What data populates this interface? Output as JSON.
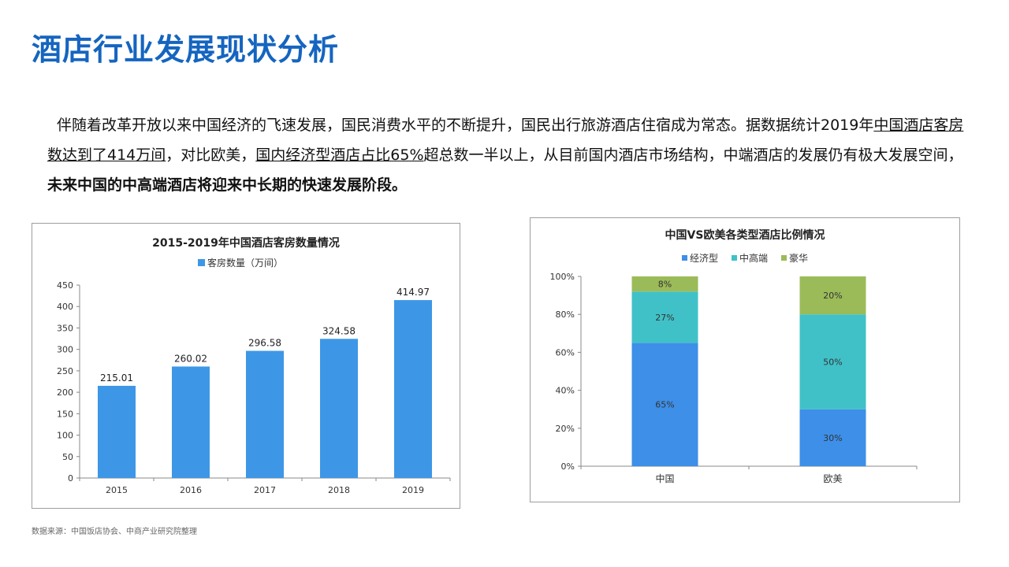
{
  "page": {
    "title": "酒店行业发展现状分析",
    "paragraph": {
      "part1": "伴随着改革开放以来中国经济的飞速发展，国民消费水平的不断提升，国民出行旅游酒店住宿成为常态。据数据统计2019年",
      "part2_underlined": "中国酒店客房数达到了414万间",
      "part3": "，对比欧美，",
      "part4_underlined": "国内经济型酒店占比65%",
      "part5": "超总数一半以上，从目前国内酒店市场结构，中端酒店的发展仍有极大发展空间，",
      "part6_bold": "未来中国的中高端酒店将迎来中长期的快速发展阶段。"
    },
    "source": "数据来源：中国饭店协会、中商产业研究院整理"
  },
  "chart_data": [
    {
      "type": "bar",
      "title": "2015-2019年中国酒店客房数量情况",
      "legend": [
        "客房数量（万间）"
      ],
      "legend_position": "top",
      "categories": [
        "2015",
        "2016",
        "2017",
        "2018",
        "2019"
      ],
      "values": [
        215.01,
        260.02,
        296.58,
        324.58,
        414.97
      ],
      "value_labels": [
        "215.01",
        "260.02",
        "296.58",
        "324.58",
        "414.97"
      ],
      "ylim": [
        0,
        450
      ],
      "yticks": [
        0,
        50,
        100,
        150,
        200,
        250,
        300,
        350,
        400,
        450
      ],
      "grid": false,
      "color": "#3d97e6"
    },
    {
      "type": "bar",
      "stacked": true,
      "title": "中国VS欧美各类型酒店比例情况",
      "legend_position": "top",
      "categories": [
        "中国",
        "欧美"
      ],
      "series": [
        {
          "name": "经济型",
          "values": [
            65,
            30
          ],
          "labels": [
            "65%",
            "30%"
          ],
          "color": "#3d8fe8"
        },
        {
          "name": "中高端",
          "values": [
            27,
            50
          ],
          "labels": [
            "27%",
            "50%"
          ],
          "color": "#40c1c7"
        },
        {
          "name": "豪华",
          "values": [
            8,
            20
          ],
          "labels": [
            "8%",
            "20%"
          ],
          "color": "#9bbb59"
        }
      ],
      "ylim": [
        0,
        100
      ],
      "yticks": [
        "0%",
        "20%",
        "40%",
        "60%",
        "80%",
        "100%"
      ],
      "grid": false
    }
  ]
}
